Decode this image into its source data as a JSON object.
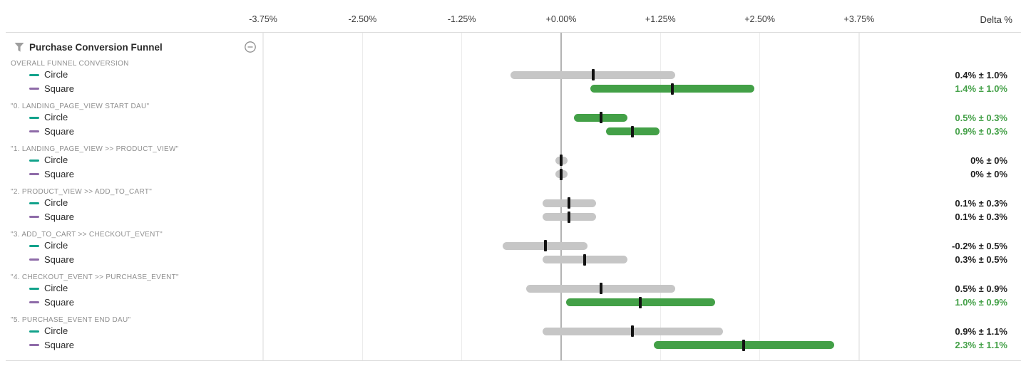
{
  "axis": {
    "ticks": [
      {
        "label": "-3.75%",
        "value": -3.75
      },
      {
        "label": "-2.50%",
        "value": -2.5
      },
      {
        "label": "-1.25%",
        "value": -1.25
      },
      {
        "label": "+0.00%",
        "value": 0
      },
      {
        "label": "+1.25%",
        "value": 1.25
      },
      {
        "label": "+2.50%",
        "value": 2.5
      },
      {
        "label": "+3.75%",
        "value": 3.75
      }
    ],
    "delta_header": "Delta %"
  },
  "panel": {
    "title": "Purchase Conversion Funnel",
    "filter_icon": "funnel-icon",
    "collapse_icon": "minus-circle-icon"
  },
  "colors": {
    "significant_green": "#43a047",
    "neutral_gray": "#c6c6c6",
    "estimate_tick": "#121212",
    "zero_line": "#b3b3b3",
    "grid_line": "#ececec",
    "circle_dash": "#12a28b",
    "square_dash": "#8e6ba8"
  },
  "chart_data": {
    "type": "interval",
    "title": "Purchase Conversion Funnel",
    "x_axis": {
      "label": "Delta %",
      "range": [
        -4.4,
        5.8
      ],
      "tick_step": 1.25,
      "unit": "%",
      "grid": true
    },
    "variants": [
      {
        "name": "Circle",
        "color": "#12a28b"
      },
      {
        "name": "Square",
        "color": "#8e6ba8"
      }
    ],
    "groups": [
      {
        "label": "OVERALL FUNNEL CONVERSION",
        "rows": [
          {
            "variant": "Circle",
            "delta": 0.4,
            "ci": 1.0,
            "display": "0.4% ± 1.0%",
            "significant": false
          },
          {
            "variant": "Square",
            "delta": 1.4,
            "ci": 1.0,
            "display": "1.4% ± 1.0%",
            "significant": true
          }
        ]
      },
      {
        "label": "\"0. LANDING_PAGE_VIEW START DAU\"",
        "rows": [
          {
            "variant": "Circle",
            "delta": 0.5,
            "ci": 0.3,
            "display": "0.5% ± 0.3%",
            "significant": true
          },
          {
            "variant": "Square",
            "delta": 0.9,
            "ci": 0.3,
            "display": "0.9% ± 0.3%",
            "significant": true
          }
        ]
      },
      {
        "label": "\"1. LANDING_PAGE_VIEW >> PRODUCT_VIEW\"",
        "rows": [
          {
            "variant": "Circle",
            "delta": 0,
            "ci": 0,
            "display": "0% ± 0%",
            "significant": false
          },
          {
            "variant": "Square",
            "delta": 0,
            "ci": 0,
            "display": "0% ± 0%",
            "significant": false
          }
        ]
      },
      {
        "label": "\"2. PRODUCT_VIEW >> ADD_TO_CART\"",
        "rows": [
          {
            "variant": "Circle",
            "delta": 0.1,
            "ci": 0.3,
            "display": "0.1% ± 0.3%",
            "significant": false
          },
          {
            "variant": "Square",
            "delta": 0.1,
            "ci": 0.3,
            "display": "0.1% ± 0.3%",
            "significant": false
          }
        ]
      },
      {
        "label": "\"3. ADD_TO_CART >> CHECKOUT_EVENT\"",
        "rows": [
          {
            "variant": "Circle",
            "delta": -0.2,
            "ci": 0.5,
            "display": "-0.2% ± 0.5%",
            "significant": false
          },
          {
            "variant": "Square",
            "delta": 0.3,
            "ci": 0.5,
            "display": "0.3% ± 0.5%",
            "significant": false
          }
        ]
      },
      {
        "label": "\"4. CHECKOUT_EVENT >> PURCHASE_EVENT\"",
        "rows": [
          {
            "variant": "Circle",
            "delta": 0.5,
            "ci": 0.9,
            "display": "0.5% ± 0.9%",
            "significant": false
          },
          {
            "variant": "Square",
            "delta": 1.0,
            "ci": 0.9,
            "display": "1.0% ± 0.9%",
            "significant": true
          }
        ]
      },
      {
        "label": "\"5. PURCHASE_EVENT END DAU\"",
        "rows": [
          {
            "variant": "Circle",
            "delta": 0.9,
            "ci": 1.1,
            "display": "0.9% ± 1.1%",
            "significant": false
          },
          {
            "variant": "Square",
            "delta": 2.3,
            "ci": 1.1,
            "display": "2.3% ± 1.1%",
            "significant": true
          }
        ]
      }
    ]
  }
}
